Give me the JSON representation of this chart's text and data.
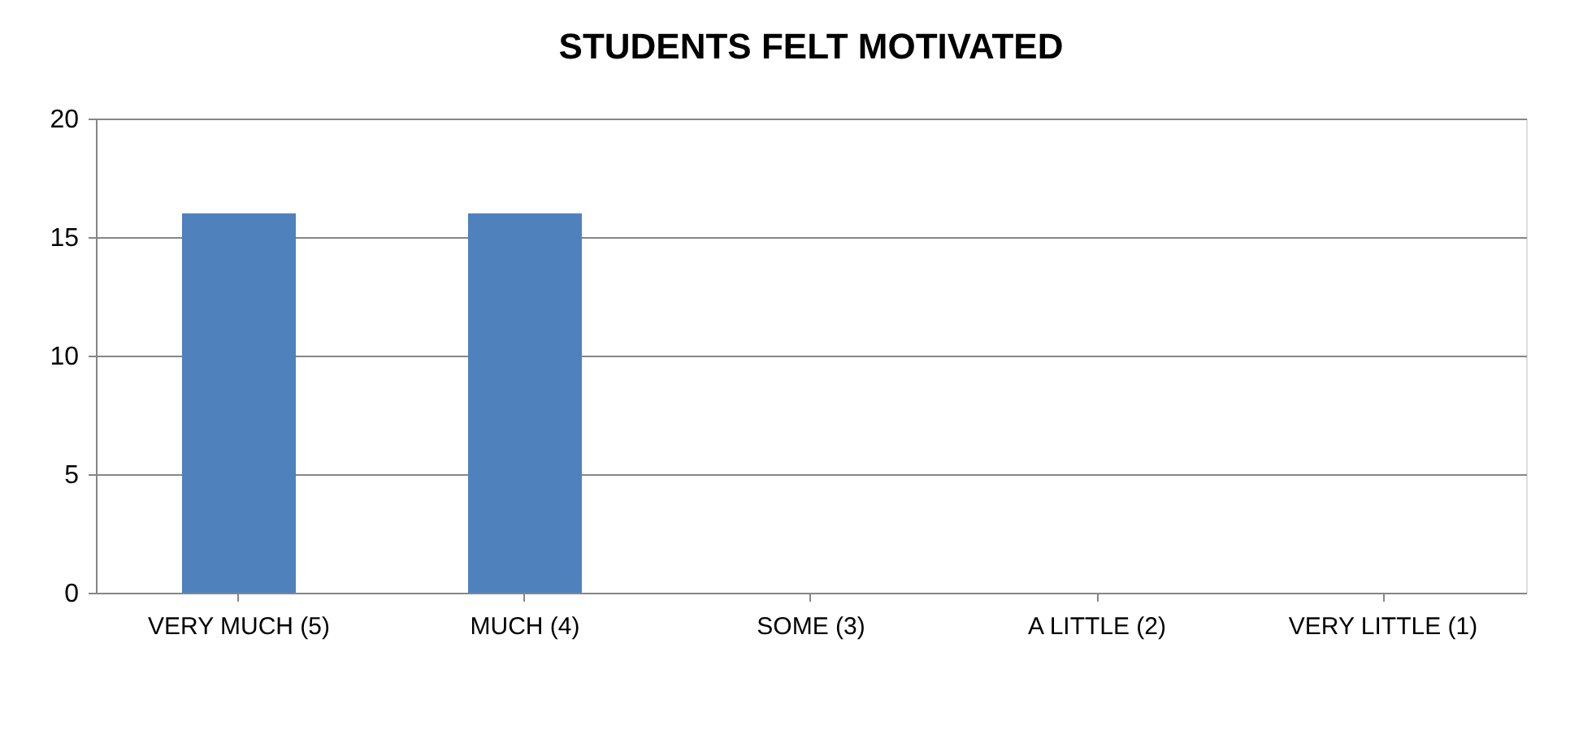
{
  "chart_data": {
    "type": "bar",
    "title": "STUDENTS FELT MOTIVATED",
    "categories": [
      "VERY MUCH (5)",
      "MUCH (4)",
      "SOME (3)",
      "A LITTLE (2)",
      "VERY LITTLE (1)"
    ],
    "values": [
      16,
      16,
      0,
      0,
      0
    ],
    "color": "#4f81bd",
    "ylim": [
      0,
      20
    ],
    "yticks": [
      0,
      5,
      10,
      15,
      20
    ],
    "grid": "y"
  }
}
